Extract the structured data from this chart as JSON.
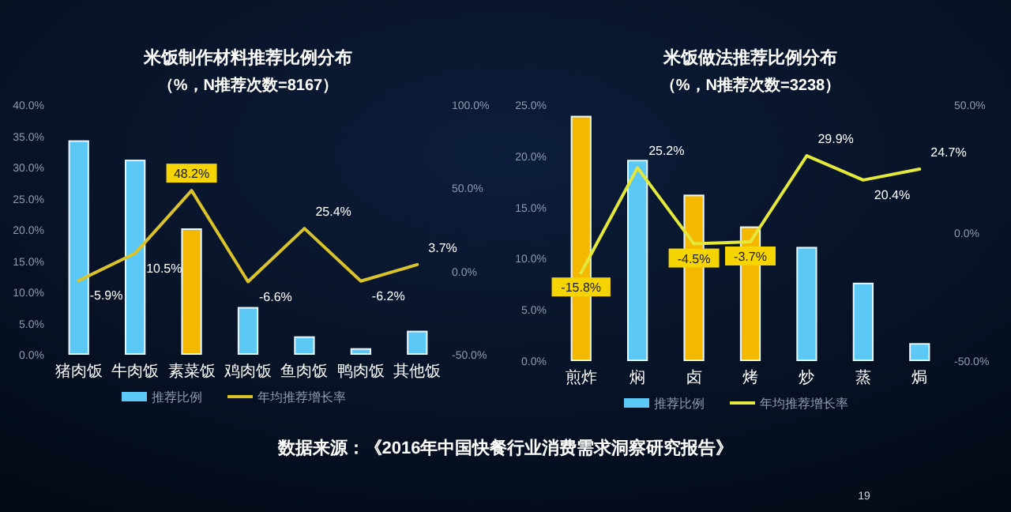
{
  "chart_data": [
    {
      "type": "bar",
      "title": "米饭制作材料推荐比例分布",
      "subtitle": "（%，N推荐次数=8167）",
      "categories": [
        "猪肉饭",
        "牛肉饭",
        "素菜饭",
        "鸡肉饭",
        "鱼肉饭",
        "鸭肉饭",
        "其他饭"
      ],
      "series": [
        {
          "name": "推荐比例",
          "color": "#5bc8f5",
          "colors": [
            "#5bc8f5",
            "#5bc8f5",
            "#f5b800",
            "#5bc8f5",
            "#5bc8f5",
            "#5bc8f5",
            "#5bc8f5"
          ],
          "values": [
            34.1,
            31.0,
            20.0,
            7.4,
            2.7,
            0.8,
            3.6
          ]
        },
        {
          "name": "年均推荐增长率",
          "type": "line",
          "axis": "y2",
          "color": "#d9c22a",
          "values": [
            -5.9,
            10.5,
            48.2,
            -6.6,
            25.4,
            -6.2,
            3.7
          ],
          "value_labels": [
            "-5.9%",
            "10.5%",
            "48.2%",
            "-6.6%",
            "25.4%",
            "-6.2%",
            "3.7%"
          ]
        }
      ],
      "ylim": [
        0,
        40
      ],
      "yticks": [
        {
          "value": 0,
          "label": "0.0%"
        },
        {
          "value": 5,
          "label": "5.0%"
        },
        {
          "value": 10,
          "label": "10.0%"
        },
        {
          "value": 15,
          "label": "15.0%"
        },
        {
          "value": 20,
          "label": "20.0%"
        },
        {
          "value": 25,
          "label": "25.0%"
        },
        {
          "value": 30,
          "label": "30.0%"
        },
        {
          "value": 35,
          "label": "35.0%"
        },
        {
          "value": 40,
          "label": "40.0%"
        }
      ],
      "y2lim": [
        -50,
        100
      ],
      "y2ticks": [
        {
          "value": -50,
          "label": "-50.0%"
        },
        {
          "value": 0,
          "label": "0.0%"
        },
        {
          "value": 50,
          "label": "50.0%"
        },
        {
          "value": 100,
          "label": "100.0%"
        }
      ],
      "legend": "bottom",
      "marker": "none"
    },
    {
      "type": "bar",
      "title": "米饭做法推荐比例分布",
      "subtitle": "（%，N推荐次数=3238）",
      "categories": [
        "煎炸",
        "焖",
        "卤",
        "烤",
        "炒",
        "蒸",
        "焗"
      ],
      "series": [
        {
          "name": "推荐比例",
          "color": "#5bc8f5",
          "colors": [
            "#f5b800",
            "#5bc8f5",
            "#f5b800",
            "#f5b800",
            "#5bc8f5",
            "#5bc8f5",
            "#5bc8f5"
          ],
          "values": [
            23.8,
            19.5,
            16.1,
            13.0,
            11.0,
            7.5,
            1.6
          ]
        },
        {
          "name": "年均推荐增长率",
          "type": "line",
          "axis": "y2",
          "color": "#e3e83a",
          "values": [
            -15.8,
            25.2,
            -4.5,
            -3.7,
            29.9,
            20.4,
            24.7
          ],
          "value_labels": [
            "-15.8%",
            "25.2%",
            "-4.5%",
            "-3.7%",
            "29.9%",
            "20.4%",
            "24.7%"
          ]
        }
      ],
      "ylim": [
        0,
        25
      ],
      "yticks": [
        {
          "value": 0,
          "label": "0.0%"
        },
        {
          "value": 5,
          "label": "5.0%"
        },
        {
          "value": 10,
          "label": "10.0%"
        },
        {
          "value": 15,
          "label": "15.0%"
        },
        {
          "value": 20,
          "label": "20.0%"
        },
        {
          "value": 25,
          "label": "25.0%"
        }
      ],
      "y2lim": [
        -50,
        50
      ],
      "y2ticks": [
        {
          "value": -50,
          "label": "-50.0%"
        },
        {
          "value": 0,
          "label": "0.0%"
        },
        {
          "value": 50,
          "label": "50.0%"
        }
      ],
      "legend": "bottom",
      "marker": "none",
      "annotations": [
        "数据来源：《2016年中国快餐行业消费需求洞察研究报告》",
        "19"
      ]
    }
  ]
}
